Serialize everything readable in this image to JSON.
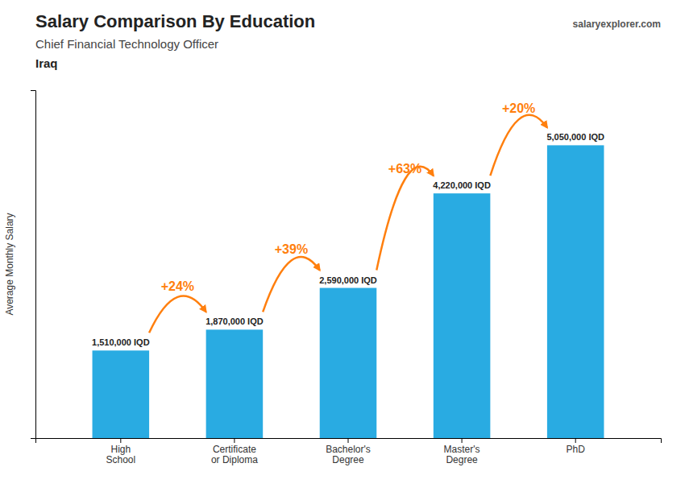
{
  "chart_data": {
    "type": "bar",
    "title": "Salary Comparison By Education",
    "subtitle": "Chief Financial Technology Officer",
    "annotations": [
      "Iraq",
      "salaryexplorer.com"
    ],
    "ylabel": "Average Monthly Salary",
    "categories": [
      "High\nSchool",
      "Certificate\nor Diploma",
      "Bachelor's\nDegree",
      "Master's\nDegree",
      "PhD"
    ],
    "values": [
      1510000,
      1870000,
      2590000,
      4220000,
      5050000
    ],
    "value_labels": [
      "1,510,000 IQD",
      "1,870,000 IQD",
      "2,590,000 IQD",
      "4,220,000 IQD",
      "5,050,000 IQD"
    ],
    "changes": [
      "+24%",
      "+39%",
      "+63%",
      "+20%"
    ],
    "color": "#29abe2",
    "ylim": [
      0,
      6000000
    ],
    "grid": false,
    "data_labels": true,
    "tick_labels": "x"
  }
}
